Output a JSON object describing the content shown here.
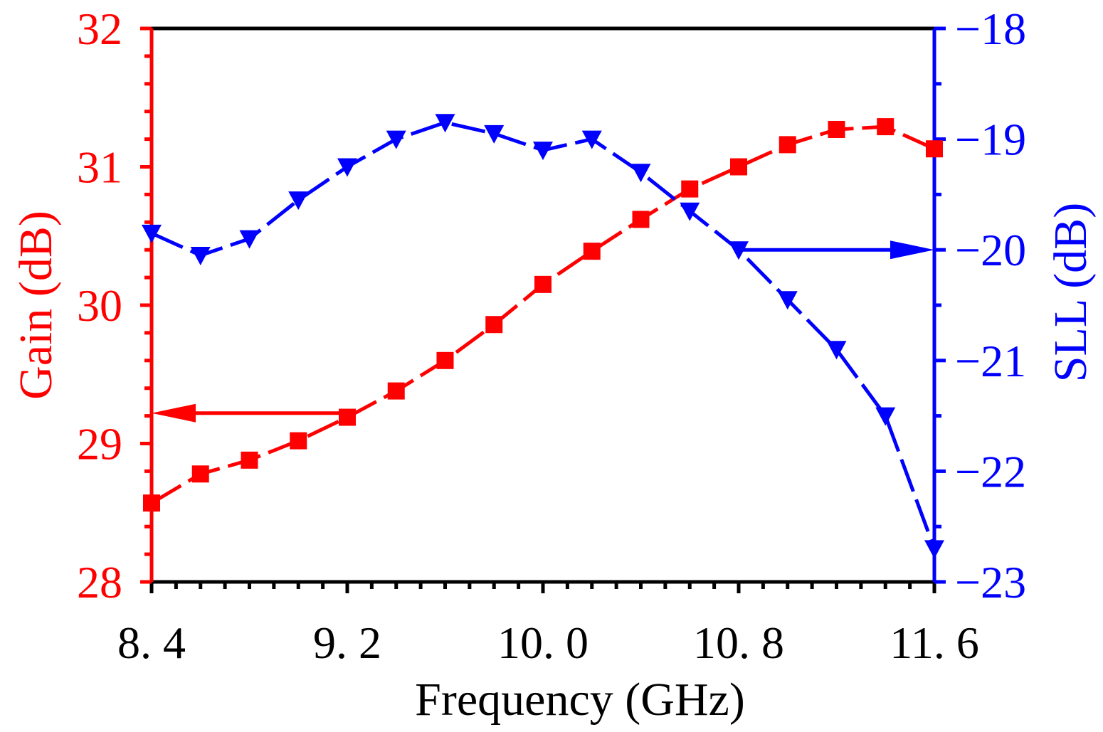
{
  "chart_data": {
    "type": "line",
    "title": "",
    "xlabel": "Frequency (GHz)",
    "ylabel_left": "Gain (dB)",
    "ylabel_right": "SLL (dB)",
    "xlim": [
      8.4,
      11.6
    ],
    "ylim_left": [
      28,
      32
    ],
    "ylim_right": [
      -23,
      -18
    ],
    "x_ticks": [
      8.4,
      9.2,
      10.0,
      10.8,
      11.6
    ],
    "x_tick_labels": [
      "8. 4",
      "9. 2",
      "10. 0",
      "10. 8",
      "11. 6"
    ],
    "y_left_ticks": [
      28,
      29,
      30,
      31,
      32
    ],
    "y_left_tick_labels": [
      "28",
      "29",
      "30",
      "31",
      "32"
    ],
    "y_right_ticks": [
      -23,
      -22,
      -21,
      -20,
      -19,
      -18
    ],
    "y_right_tick_labels": [
      "−23",
      "−22",
      "−21",
      "−20",
      "−19",
      "−18"
    ],
    "grid": false,
    "colors": {
      "gain": "#ff0000",
      "sll": "#0000ff",
      "frame": "#000000"
    },
    "x": [
      8.4,
      8.6,
      8.8,
      9.0,
      9.2,
      9.4,
      9.6,
      9.8,
      10.0,
      10.2,
      10.4,
      10.6,
      10.8,
      11.0,
      11.2,
      11.4,
      11.6
    ],
    "series": [
      {
        "name": "Gain",
        "axis": "left",
        "marker": "square",
        "linestyle": "dashed",
        "values": [
          28.57,
          28.78,
          28.88,
          29.02,
          29.19,
          29.38,
          29.6,
          29.86,
          30.15,
          30.39,
          30.62,
          30.84,
          31.0,
          31.16,
          31.27,
          31.29,
          31.13
        ]
      },
      {
        "name": "SLL",
        "axis": "right",
        "marker": "triangle-down",
        "linestyle": "dashed",
        "values": [
          -19.85,
          -20.05,
          -19.9,
          -19.55,
          -19.25,
          -19.0,
          -18.85,
          -18.95,
          -19.1,
          -19.0,
          -19.3,
          -19.65,
          -20.0,
          -20.45,
          -20.9,
          -21.5,
          -22.7
        ]
      }
    ],
    "annotations": [
      {
        "type": "arrow",
        "series": "Gain",
        "direction": "left",
        "from_x": 9.2,
        "to_x": 8.4,
        "y": 29.22
      },
      {
        "type": "arrow",
        "series": "SLL",
        "direction": "right",
        "from_x": 10.8,
        "to_x": 11.6,
        "y": -20.0
      }
    ]
  }
}
